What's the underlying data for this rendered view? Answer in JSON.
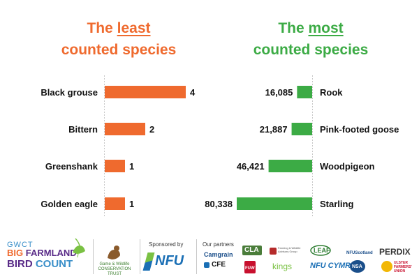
{
  "left_title": {
    "part1": "The ",
    "emphasis": "least",
    "part2": "counted species"
  },
  "right_title": {
    "part1": "The ",
    "emphasis": "most",
    "part2": "counted species"
  },
  "chart_data": [
    {
      "type": "bar",
      "orientation": "horizontal",
      "title": "The least counted species",
      "categories": [
        "Black grouse",
        "Bittern",
        "Greenshank",
        "Golden eagle"
      ],
      "values": [
        4,
        2,
        1,
        1
      ],
      "data_labels": [
        "4",
        "2",
        "1",
        "1"
      ],
      "xlim": [
        0,
        4
      ],
      "color": "#ef6a2e",
      "grid": false
    },
    {
      "type": "bar",
      "orientation": "horizontal",
      "direction": "right-to-left",
      "title": "The most counted species",
      "categories": [
        "Rook",
        "Pink-footed goose",
        "Woodpigeon",
        "Starling"
      ],
      "values": [
        16085,
        21887,
        46421,
        80338
      ],
      "data_labels": [
        "16,085",
        "21,887",
        "46,421",
        "80,338"
      ],
      "xlim": [
        0,
        80338
      ],
      "color": "#3cab45",
      "grid": false
    }
  ],
  "footer": {
    "gwct_line1": "GWCT",
    "gwct_line2a": "BIG ",
    "gwct_line2b": "FARMLAND",
    "gwct_line3a": "BIRD ",
    "gwct_line3b": "COUNT",
    "gw_name": "Game & Wildlife CONSERVATION TRUST",
    "sponsored_by": "Sponsored by",
    "nfu": "NFU",
    "our_partners": "Our partners",
    "partners": {
      "camgrain": "Camgrain",
      "cla": "CLA",
      "cfe": "CFE",
      "fwag": "Farming & Wildlife Advisory Group",
      "fuw": "FUW",
      "kings": "kings",
      "leaf": "LEAF",
      "nfu_scotland": "NFUScotland",
      "nfu_cymru": "NFU CYMRU",
      "nsa": "NSA",
      "perdix": "PERDIX",
      "ulster": "ULSTER FARMERS' UNION"
    }
  }
}
